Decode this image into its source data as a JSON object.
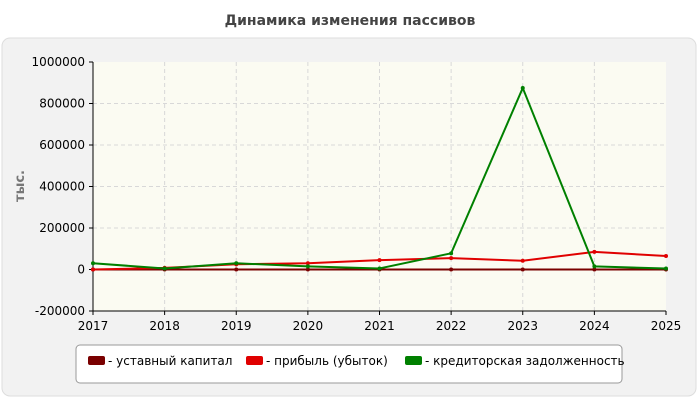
{
  "chart_data": {
    "type": "line",
    "title": "Динамика изменения пассивов",
    "ylabel": "тыс.",
    "xlabel": "",
    "x": [
      "2017",
      "2018",
      "2019",
      "2020",
      "2021",
      "2022",
      "2023",
      "2024",
      "2025"
    ],
    "yticks": [
      "-200000",
      "0",
      "200000",
      "400000",
      "600000",
      "800000",
      "1000000"
    ],
    "ylim": [
      -200000,
      1000000
    ],
    "grid": true,
    "legend_position": "bottom",
    "series": [
      {
        "name": "- уставный капитал",
        "color": "#7a0000",
        "values": [
          0,
          0,
          0,
          0,
          0,
          0,
          0,
          0,
          0
        ]
      },
      {
        "name": "- прибыль (убыток)",
        "color": "#e00000",
        "values": [
          0,
          8000,
          25000,
          30000,
          45000,
          55000,
          42000,
          85000,
          65000
        ]
      },
      {
        "name": "- кредиторская задолженность",
        "color": "#008000",
        "values": [
          30000,
          5000,
          30000,
          15000,
          5000,
          78000,
          875000,
          15000,
          5000
        ]
      }
    ]
  }
}
